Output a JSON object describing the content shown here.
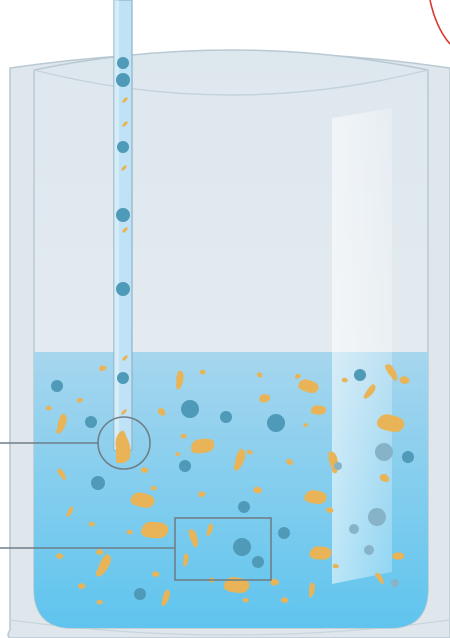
{
  "colors": {
    "background": "#ffffff",
    "vessel_outer": "#dfe7ec",
    "vessel_edge": "#b9c9d3",
    "vessel_inner_top": "#dde7ee",
    "vessel_inner_bottom": "#e9eef1",
    "liquid_top": "#a6d6ee",
    "liquid_bottom": "#5ec4ee",
    "tube_fill": "#bfe2f6",
    "tube_edge": "#8fb3c6",
    "bubble": "#4f9ab8",
    "bubble_light": "#86b3c8",
    "particle": "#e8b457",
    "callout_line": "#6f7f88",
    "red_arc": "#d9382e",
    "glare": "#f2f6f8"
  },
  "callouts": [
    {
      "name": "circle-callout",
      "shape": "circle"
    },
    {
      "name": "box-callout",
      "shape": "rectangle"
    }
  ]
}
